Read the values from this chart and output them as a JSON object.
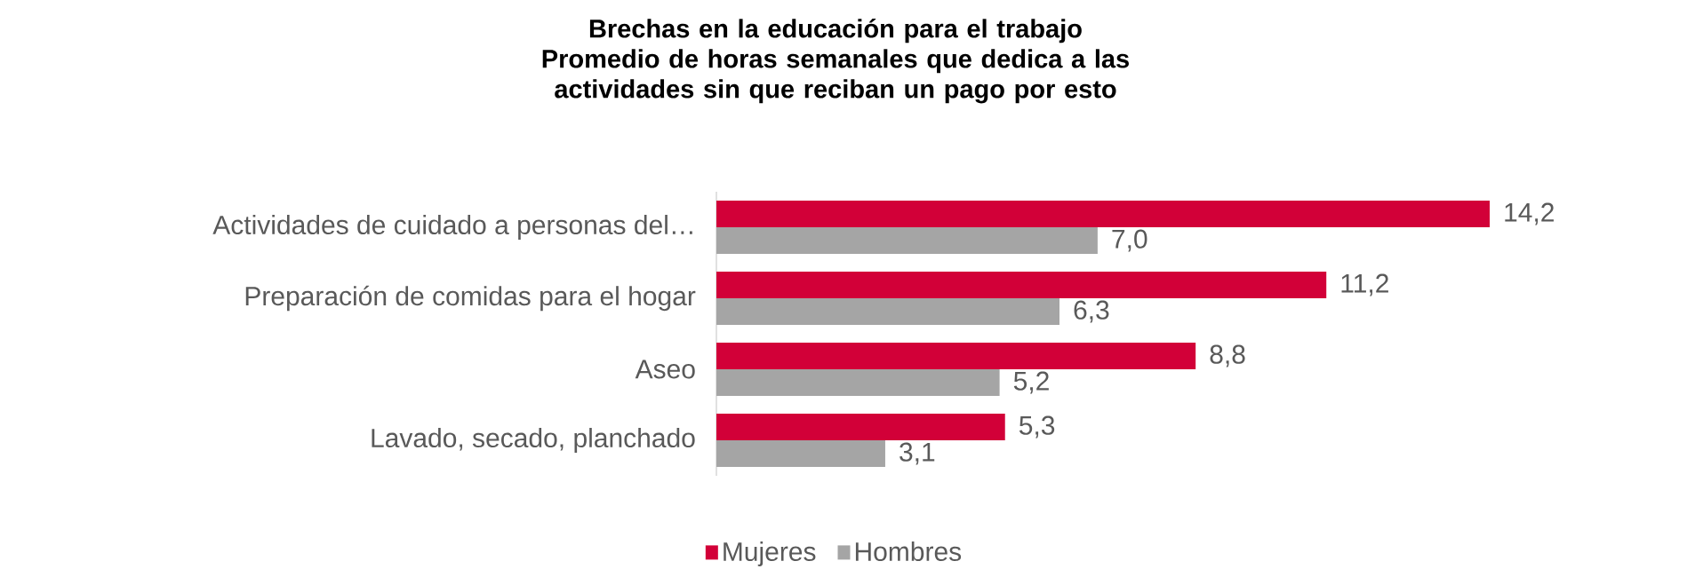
{
  "chart_data": {
    "type": "bar",
    "orientation": "horizontal",
    "title": "Brechas en la educación para el trabajo",
    "subtitle": "Promedio de horas semanales que dedica a las actividades sin que reciban un pago por esto",
    "categories": [
      "Actividades de cuidado a personas del…",
      "Preparación de comidas para el hogar",
      "Aseo",
      "Lavado, secado, planchado"
    ],
    "series": [
      {
        "name": "Mujeres",
        "color": "#d20038",
        "values": [
          14.2,
          11.2,
          8.8,
          5.3
        ],
        "value_labels": [
          "14,2",
          "11,2",
          "8,8",
          "5,3"
        ]
      },
      {
        "name": "Hombres",
        "color": "#a5a5a5",
        "values": [
          7.0,
          6.3,
          5.2,
          3.1
        ],
        "value_labels": [
          "7,0",
          "6,3",
          "5,2",
          "3,1"
        ]
      }
    ],
    "legend": "bottom",
    "grid": false
  }
}
